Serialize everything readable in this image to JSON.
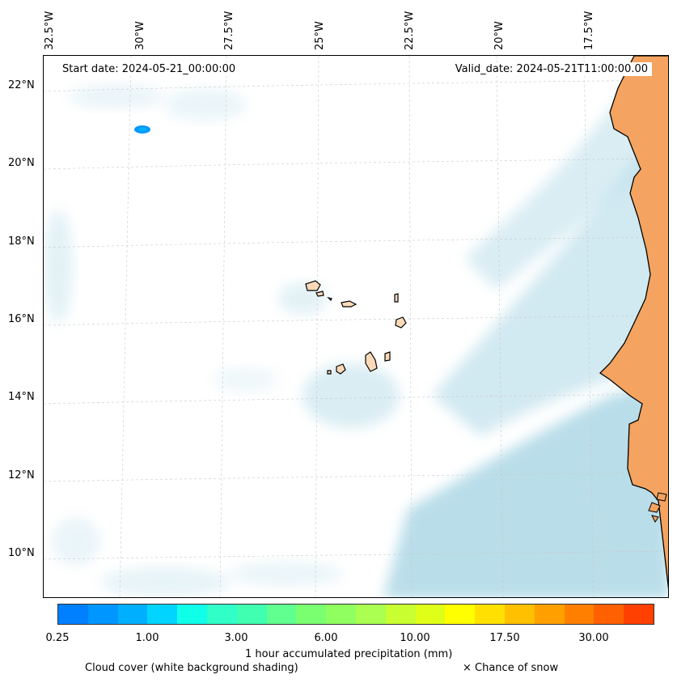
{
  "map": {
    "start_date": "Start date: 2024-05-21_00:00:00",
    "valid_date": "Valid_date: 2024-05-21T11:00:00.00",
    "longitude_labels": [
      "32.5°W",
      "30°W",
      "27.5°W",
      "25°W",
      "22.5°W",
      "20°W",
      "17.5°W"
    ],
    "latitude_labels": [
      "22°N",
      "20°N",
      "18°N",
      "16°N",
      "14°N",
      "12°N",
      "10°N"
    ],
    "colors": {
      "land": "#f4a460",
      "island_land": "#fcd9b8",
      "cloud": "#add8e6",
      "coastline": "#000000"
    }
  },
  "colorbar": {
    "colors": [
      "#0080ff",
      "#0096ff",
      "#00b0ff",
      "#00d4ff",
      "#10ffe8",
      "#30ffc8",
      "#40ffb0",
      "#60ff90",
      "#7aff70",
      "#90ff60",
      "#aaff50",
      "#c8ff30",
      "#e0ff18",
      "#ffff00",
      "#ffe000",
      "#ffc000",
      "#ffa000",
      "#ff8000",
      "#ff6000",
      "#ff4000"
    ],
    "tick_labels": [
      "0.25",
      "1.00",
      "3.00",
      "6.00",
      "10.00",
      "17.50",
      "30.00"
    ],
    "label": "1 hour accumulated precipitation (mm)"
  },
  "legend": {
    "cloud_cover": "Cloud cover (white background shading)",
    "snow": "× Chance of snow"
  }
}
